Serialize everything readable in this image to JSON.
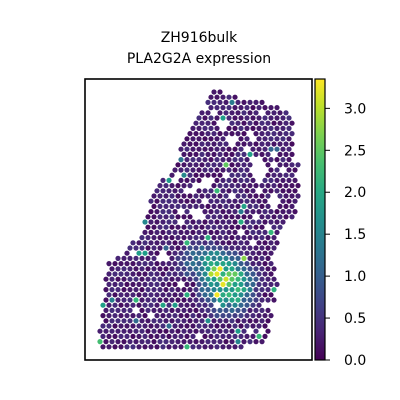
{
  "chart_data": {
    "type": "scatter",
    "title": [
      "ZH916bulk",
      "PLA2G2A expression"
    ],
    "xlabel": "",
    "ylabel": "",
    "axis_ticks": "hidden",
    "grid": false,
    "colormap": "viridis",
    "colorbar": {
      "placement": "right",
      "range": [
        0.0,
        3.35
      ],
      "ticks": [
        0.0,
        0.5,
        1.0,
        1.5,
        2.0,
        2.5,
        3.0
      ],
      "tick_labels": [
        "0.0",
        "0.5",
        "1.0",
        "1.5",
        "2.0",
        "2.5",
        "3.0"
      ]
    },
    "value_range": [
      0.0,
      3.35
    ],
    "spatial_layout": "tissue section; hexagonal spot grid",
    "hotspot_region": "lower center-right of tissue",
    "hotspot_peak_value": 3.3,
    "background_value": 0.1
  },
  "colors": {
    "viridis_low": "#440154",
    "viridis_mid": "#21918c",
    "viridis_high": "#fde725"
  }
}
